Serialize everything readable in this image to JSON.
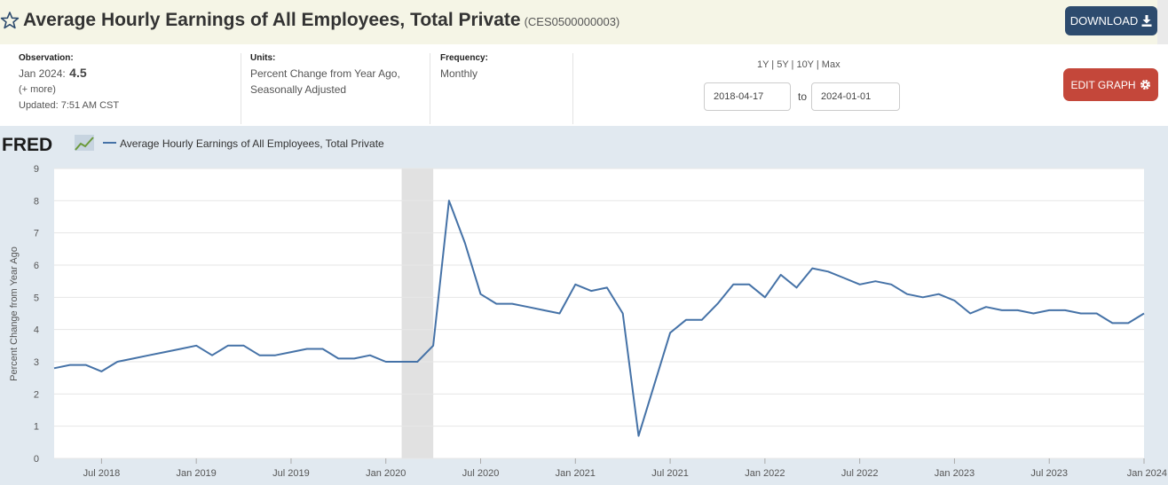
{
  "header": {
    "title": "Average Hourly Earnings of All Employees, Total Private",
    "series_id": "(CES0500000003)",
    "download_label": "DOWNLOAD"
  },
  "info": {
    "observation_label": "Observation:",
    "observation_date": "Jan 2024:",
    "observation_value": "4.5",
    "more_label": "(+ more)",
    "updated": "Updated: 7:51 AM CST",
    "units_label": "Units:",
    "units_line1": "Percent Change from Year Ago,",
    "units_line2": "Seasonally Adjusted",
    "frequency_label": "Frequency:",
    "frequency_value": "Monthly"
  },
  "range": {
    "links": "1Y | 5Y | 10Y | Max",
    "start": "2018-04-17",
    "to_label": "to",
    "end": "2024-01-01"
  },
  "edit_label": "EDIT GRAPH",
  "icons": {
    "star": "star-outline-icon",
    "download": "download-icon",
    "gear": "gear-icon",
    "fred_logo": "fred-logo-icon"
  },
  "colors": {
    "line": "#4572a7",
    "recession": "#e1e1e1",
    "plot_bg": "#ffffff",
    "chart_bg": "#e1e9f0",
    "download_button": "#2d4b6e",
    "edit_button": "#c4473a"
  },
  "chart_data": {
    "type": "line",
    "logo": "FRED",
    "legend": [
      {
        "label": "Average Hourly Earnings of All Employees, Total Private"
      }
    ],
    "ylabel": "Percent Change from Year Ago",
    "ylim": [
      0,
      9
    ],
    "yticks": [
      0,
      1,
      2,
      3,
      4,
      5,
      6,
      7,
      8,
      9
    ],
    "xlim": [
      "2018-04",
      "2024-01"
    ],
    "xticks": [
      {
        "date": "2018-07",
        "label": "Jul 2018"
      },
      {
        "date": "2019-01",
        "label": "Jan 2019"
      },
      {
        "date": "2019-07",
        "label": "Jul 2019"
      },
      {
        "date": "2020-01",
        "label": "Jan 2020"
      },
      {
        "date": "2020-07",
        "label": "Jul 2020"
      },
      {
        "date": "2021-01",
        "label": "Jan 2021"
      },
      {
        "date": "2021-07",
        "label": "Jul 2021"
      },
      {
        "date": "2022-01",
        "label": "Jan 2022"
      },
      {
        "date": "2022-07",
        "label": "Jul 2022"
      },
      {
        "date": "2023-01",
        "label": "Jan 2023"
      },
      {
        "date": "2023-07",
        "label": "Jul 2023"
      },
      {
        "date": "2024-01",
        "label": "Jan 2024"
      }
    ],
    "recession": [
      {
        "start": "2020-02",
        "end": "2020-04"
      }
    ],
    "grid": "horizontal",
    "x": [
      "2018-04",
      "2018-05",
      "2018-06",
      "2018-07",
      "2018-08",
      "2018-09",
      "2018-10",
      "2018-11",
      "2018-12",
      "2019-01",
      "2019-02",
      "2019-03",
      "2019-04",
      "2019-05",
      "2019-06",
      "2019-07",
      "2019-08",
      "2019-09",
      "2019-10",
      "2019-11",
      "2019-12",
      "2020-01",
      "2020-02",
      "2020-03",
      "2020-04",
      "2020-05",
      "2020-06",
      "2020-07",
      "2020-08",
      "2020-09",
      "2020-10",
      "2020-11",
      "2020-12",
      "2021-01",
      "2021-02",
      "2021-03",
      "2021-04",
      "2021-05",
      "2021-06",
      "2021-07",
      "2021-08",
      "2021-09",
      "2021-10",
      "2021-11",
      "2021-12",
      "2022-01",
      "2022-02",
      "2022-03",
      "2022-04",
      "2022-05",
      "2022-06",
      "2022-07",
      "2022-08",
      "2022-09",
      "2022-10",
      "2022-11",
      "2022-12",
      "2023-01",
      "2023-02",
      "2023-03",
      "2023-04",
      "2023-05",
      "2023-06",
      "2023-07",
      "2023-08",
      "2023-09",
      "2023-10",
      "2023-11",
      "2023-12",
      "2024-01"
    ],
    "values": [
      2.8,
      2.9,
      2.9,
      2.7,
      3.0,
      3.1,
      3.2,
      3.3,
      3.4,
      3.5,
      3.2,
      3.5,
      3.5,
      3.2,
      3.2,
      3.3,
      3.4,
      3.4,
      3.1,
      3.1,
      3.2,
      3.0,
      3.0,
      3.0,
      3.5,
      8.0,
      6.7,
      5.1,
      4.8,
      4.8,
      4.7,
      4.6,
      4.5,
      5.4,
      5.2,
      5.3,
      4.5,
      0.7,
      2.3,
      3.9,
      4.3,
      4.3,
      4.8,
      5.4,
      5.4,
      5.0,
      5.7,
      5.3,
      5.9,
      5.8,
      5.6,
      5.4,
      5.5,
      5.4,
      5.1,
      5.0,
      5.1,
      4.9,
      4.5,
      4.7,
      4.6,
      4.6,
      4.5,
      4.6,
      4.6,
      4.5,
      4.5,
      4.2,
      4.2,
      4.5
    ]
  }
}
